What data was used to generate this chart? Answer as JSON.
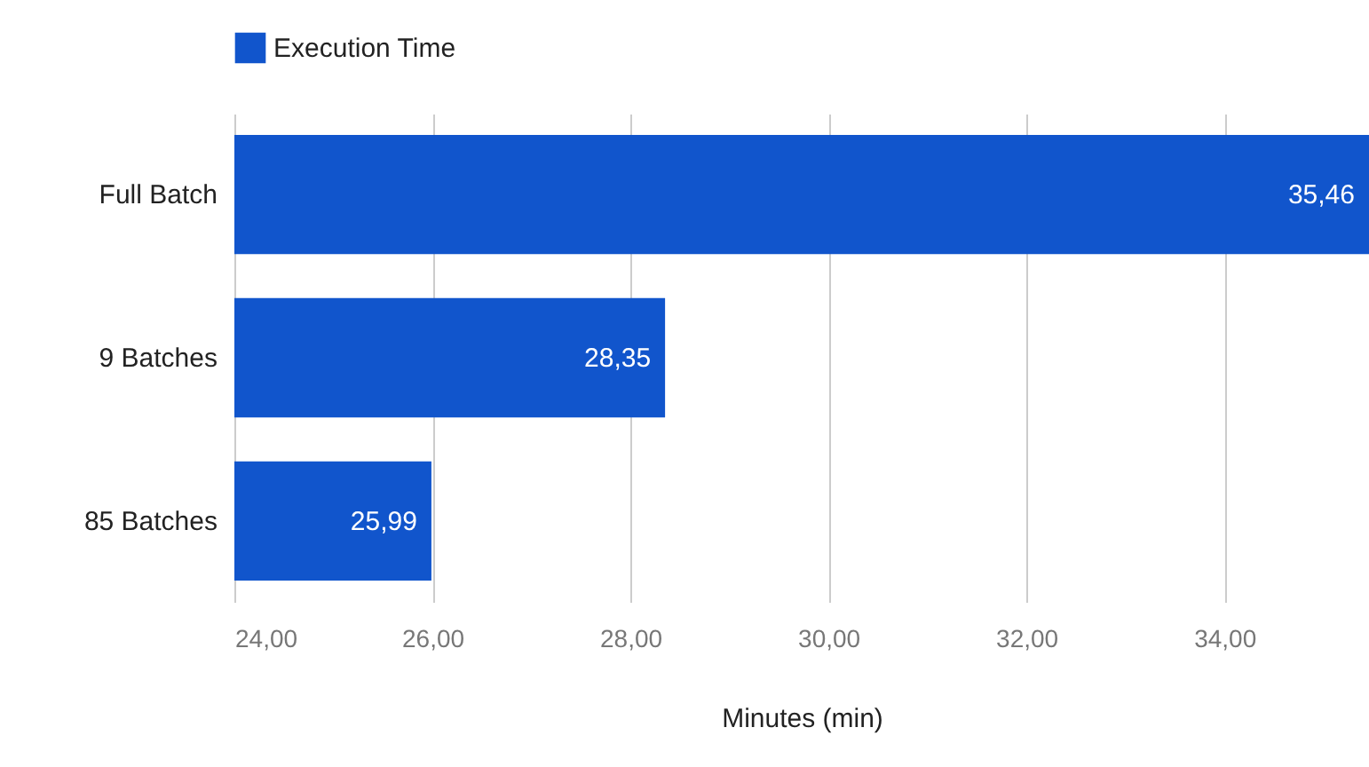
{
  "chart_data": {
    "type": "bar",
    "orientation": "horizontal",
    "xlabel": "Minutes (min)",
    "categories": [
      "Full Batch",
      "9 Batches",
      "85 Batches"
    ],
    "series": [
      {
        "name": "Execution Time",
        "color": "#1155cc",
        "values": [
          35.46,
          28.35,
          25.99
        ],
        "value_labels": [
          "35,46",
          "28,35",
          "25,99"
        ]
      }
    ],
    "xlim": [
      24,
      35.46
    ],
    "xticks": [
      {
        "value": 24,
        "label": "24,00"
      },
      {
        "value": 26,
        "label": "26,00"
      },
      {
        "value": 28,
        "label": "28,00"
      },
      {
        "value": 30,
        "label": "30,00"
      },
      {
        "value": 32,
        "label": "32,00"
      },
      {
        "value": 34,
        "label": "34,00"
      }
    ],
    "grid": "x",
    "legend": "top"
  }
}
